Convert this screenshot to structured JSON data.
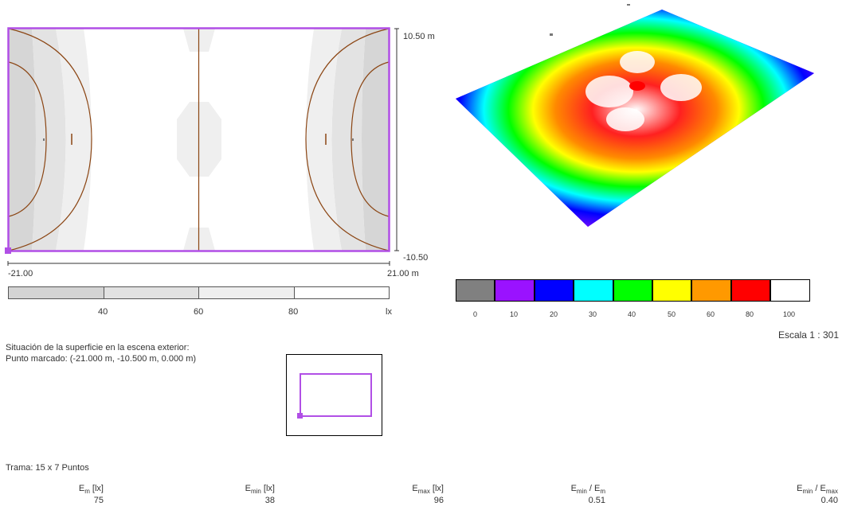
{
  "plan": {
    "y_top_label": "10.50 m",
    "y_bottom_label": "-10.50",
    "x_left_label": "-21.00",
    "x_right_label": "21.00 m"
  },
  "gray_scale": {
    "ticks": [
      "40",
      "60",
      "80"
    ],
    "unit": "lx",
    "colors": [
      "#d4d4d4",
      "#e2e2e2",
      "#efefef",
      "#ffffff"
    ]
  },
  "color_scale": {
    "colors": [
      "#808080",
      "#9a12ff",
      "#0000ff",
      "#00ffff",
      "#00ff00",
      "#ffff00",
      "#ff9900",
      "#ff0000",
      "#ffffff"
    ],
    "labels": [
      "0",
      "10",
      "20",
      "30",
      "40",
      "50",
      "60",
      "80",
      "100"
    ]
  },
  "scale_text": "Escala 1 : 301",
  "location": {
    "line1": "Situación de la superficie en la escena exterior:",
    "line2": "Punto marcado: (-21.000 m, -10.500 m, 0.000 m)"
  },
  "grid_text": "Trama: 15 x 7 Puntos",
  "stats": [
    {
      "sym": "E",
      "sub": "m",
      "unit": " [lx]",
      "value": "75"
    },
    {
      "sym": "E",
      "sub": "min",
      "unit": " [lx]",
      "value": "38"
    },
    {
      "sym": "E",
      "sub": "max",
      "unit": " [lx]",
      "value": "96"
    },
    {
      "sym": "E",
      "sub": "min",
      "unit": " / E",
      "sub2": "m",
      "value": "0.51"
    },
    {
      "sym": "E",
      "sub": "min",
      "unit": " / E",
      "sub2": "max",
      "value": "0.40"
    }
  ]
}
